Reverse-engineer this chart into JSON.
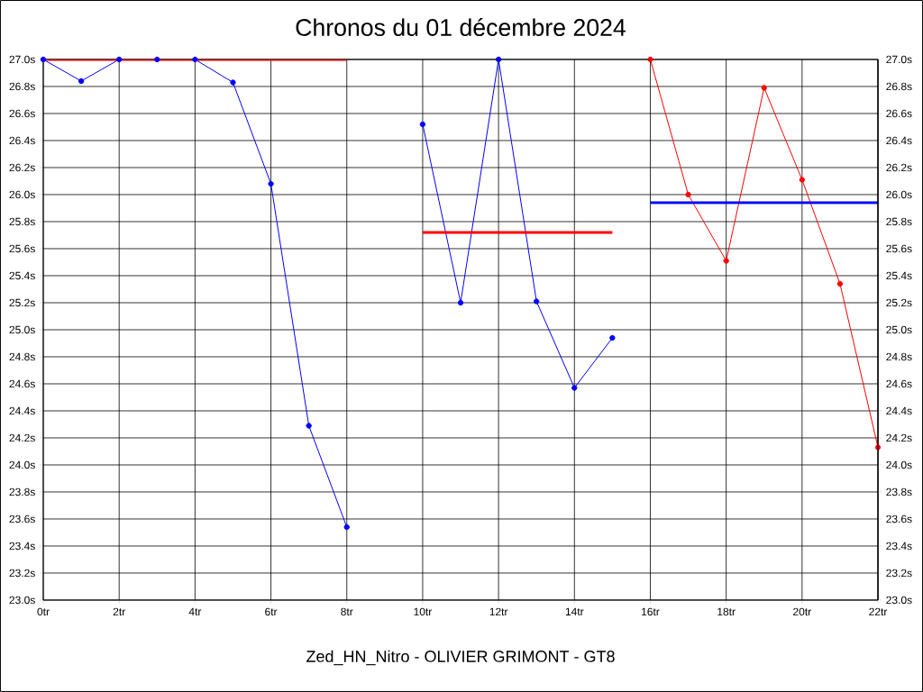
{
  "chart_data": {
    "type": "line",
    "title": "Chronos du 01 décembre 2024",
    "xlabel": "Zed_HN_Nitro - OLIVIER GRIMONT - GT8",
    "series": [
      {
        "color": "#0000ff",
        "x": [
          0,
          1,
          2,
          3,
          4,
          5,
          6,
          7,
          8
        ],
        "values": [
          27.0,
          26.84,
          27.0,
          27.0,
          27.0,
          26.83,
          26.08,
          24.29,
          23.54
        ],
        "marker": "circle"
      },
      {
        "color": "#0000ff",
        "x": [
          10,
          11,
          12,
          13,
          14,
          15
        ],
        "values": [
          26.52,
          25.2,
          27.0,
          25.21,
          24.57,
          24.94
        ],
        "marker": "circle"
      },
      {
        "color": "#ff0000",
        "x": [
          16,
          17,
          18,
          19,
          20,
          21,
          22
        ],
        "values": [
          27.0,
          26.0,
          25.51,
          26.79,
          26.11,
          25.34,
          24.13
        ],
        "marker": "circle"
      },
      {
        "color": "#ff0000",
        "x": [
          0,
          8
        ],
        "values": [
          27.0,
          27.0
        ],
        "marker": "none"
      },
      {
        "color": "#ff0000",
        "x": [
          10,
          15
        ],
        "values": [
          25.72,
          25.72
        ],
        "marker": "none"
      },
      {
        "color": "#0000ff",
        "x": [
          16,
          22
        ],
        "values": [
          25.94,
          25.94
        ],
        "marker": "none"
      }
    ],
    "xlim": [
      0,
      22
    ],
    "xticks": [
      {
        "value": 0,
        "label": "0tr"
      },
      {
        "value": 2,
        "label": "2tr"
      },
      {
        "value": 4,
        "label": "4tr"
      },
      {
        "value": 6,
        "label": "6tr"
      },
      {
        "value": 8,
        "label": "8tr"
      },
      {
        "value": 10,
        "label": "10tr"
      },
      {
        "value": 12,
        "label": "12tr"
      },
      {
        "value": 14,
        "label": "14tr"
      },
      {
        "value": 16,
        "label": "16tr"
      },
      {
        "value": 18,
        "label": "18tr"
      },
      {
        "value": 20,
        "label": "20tr"
      },
      {
        "value": 22,
        "label": "22tr"
      }
    ],
    "ylim": [
      23.0,
      27.0
    ],
    "yticks": [
      {
        "value": 23.0,
        "label": "23.0s"
      },
      {
        "value": 23.2,
        "label": "23.2s"
      },
      {
        "value": 23.4,
        "label": "23.4s"
      },
      {
        "value": 23.6,
        "label": "23.6s"
      },
      {
        "value": 23.8,
        "label": "23.8s"
      },
      {
        "value": 24.0,
        "label": "24.0s"
      },
      {
        "value": 24.2,
        "label": "24.2s"
      },
      {
        "value": 24.4,
        "label": "24.4s"
      },
      {
        "value": 24.6,
        "label": "24.6s"
      },
      {
        "value": 24.8,
        "label": "24.8s"
      },
      {
        "value": 25.0,
        "label": "25.0s"
      },
      {
        "value": 25.2,
        "label": "25.2s"
      },
      {
        "value": 25.4,
        "label": "25.4s"
      },
      {
        "value": 25.6,
        "label": "25.6s"
      },
      {
        "value": 25.8,
        "label": "25.8s"
      },
      {
        "value": 26.0,
        "label": "26.0s"
      },
      {
        "value": 26.2,
        "label": "26.2s"
      },
      {
        "value": 26.4,
        "label": "26.4s"
      },
      {
        "value": 26.6,
        "label": "26.6s"
      },
      {
        "value": 26.8,
        "label": "26.8s"
      },
      {
        "value": 27.0,
        "label": "27.0s"
      }
    ],
    "y2lim": [
      23.0,
      27.0
    ],
    "y2ticks": [
      {
        "value": 23.0,
        "label": "23.0s"
      },
      {
        "value": 23.2,
        "label": "23.2s"
      },
      {
        "value": 23.4,
        "label": "23.4s"
      },
      {
        "value": 23.6,
        "label": "23.6s"
      },
      {
        "value": 23.8,
        "label": "23.8s"
      },
      {
        "value": 24.0,
        "label": "24.0s"
      },
      {
        "value": 24.2,
        "label": "24.2s"
      },
      {
        "value": 24.4,
        "label": "24.4s"
      },
      {
        "value": 24.6,
        "label": "24.6s"
      },
      {
        "value": 24.8,
        "label": "24.8s"
      },
      {
        "value": 25.0,
        "label": "25.0s"
      },
      {
        "value": 25.2,
        "label": "25.2s"
      },
      {
        "value": 25.4,
        "label": "25.4s"
      },
      {
        "value": 25.6,
        "label": "25.6s"
      },
      {
        "value": 25.8,
        "label": "25.8s"
      },
      {
        "value": 26.0,
        "label": "26.0s"
      },
      {
        "value": 26.2,
        "label": "26.2s"
      },
      {
        "value": 26.4,
        "label": "26.4s"
      },
      {
        "value": 26.6,
        "label": "26.6s"
      },
      {
        "value": 26.8,
        "label": "26.8s"
      },
      {
        "value": 27.0,
        "label": "27.0s"
      }
    ],
    "grid": true
  }
}
